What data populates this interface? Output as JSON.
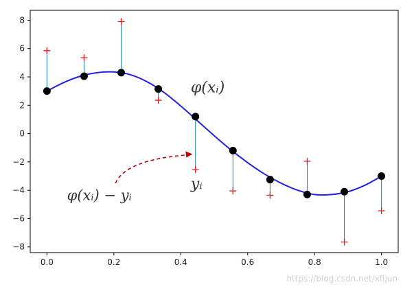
{
  "chart_data": {
    "type": "scatter",
    "title": "",
    "xlabel": "",
    "ylabel": "",
    "xlim": [
      -0.05,
      1.05
    ],
    "ylim": [
      -8.4,
      8.7
    ],
    "x_ticks": [
      0.0,
      0.2,
      0.4,
      0.6,
      0.8,
      1.0
    ],
    "x_tick_labels": [
      "0.0",
      "0.2",
      "0.4",
      "0.6",
      "0.8",
      "1.0"
    ],
    "y_ticks": [
      8,
      6,
      4,
      2,
      0,
      -2,
      -4,
      -6,
      -8
    ],
    "y_tick_labels": [
      "8",
      "6",
      "4",
      "2",
      "0",
      "−2",
      "−4",
      "−6",
      "−8"
    ],
    "grid": false,
    "curve": {
      "color": "#1f1fe6",
      "x": [
        0.0,
        0.05,
        0.1,
        0.15,
        0.2,
        0.25,
        0.3,
        0.35,
        0.4,
        0.45,
        0.5,
        0.55,
        0.6,
        0.65,
        0.7,
        0.75,
        0.8,
        0.85,
        0.9,
        0.95,
        1.0
      ],
      "y": [
        3.0,
        3.6,
        4.05,
        4.3,
        4.35,
        4.15,
        3.65,
        2.9,
        1.95,
        0.9,
        -0.15,
        -1.15,
        -2.05,
        -2.85,
        -3.5,
        -4.0,
        -4.3,
        -4.3,
        -4.1,
        -3.65,
        -3.0
      ]
    },
    "fitted_points": {
      "color": "#000000",
      "x": [
        0.0,
        0.111,
        0.222,
        0.333,
        0.444,
        0.556,
        0.667,
        0.778,
        0.889,
        1.0
      ],
      "y": [
        3.0,
        4.05,
        4.3,
        3.15,
        1.2,
        -1.2,
        -3.25,
        -4.3,
        -4.1,
        -3.0
      ]
    },
    "observed_points": {
      "color": "#e31a1c",
      "marker": "+",
      "x": [
        0.0,
        0.111,
        0.222,
        0.333,
        0.444,
        0.556,
        0.667,
        0.778,
        0.889,
        1.0
      ],
      "y": [
        5.85,
        5.35,
        7.9,
        2.35,
        -2.55,
        -4.05,
        -4.35,
        -1.95,
        -7.65,
        -5.45
      ]
    },
    "residual_line_color": "#1f77b4",
    "annotations": [
      {
        "text": "φ(xᵢ)",
        "x": 0.43,
        "y": 2.9
      },
      {
        "text": "yᵢ",
        "x": 0.43,
        "y": -3.9
      },
      {
        "text": "φ(xᵢ) − yᵢ",
        "x": 0.06,
        "y": -4.7
      }
    ],
    "arrow": {
      "from": [
        0.205,
        -3.5
      ],
      "to": [
        0.435,
        -1.45
      ],
      "color": "#c00000"
    }
  },
  "watermark": "https://blog.csdn.net/xfijun"
}
